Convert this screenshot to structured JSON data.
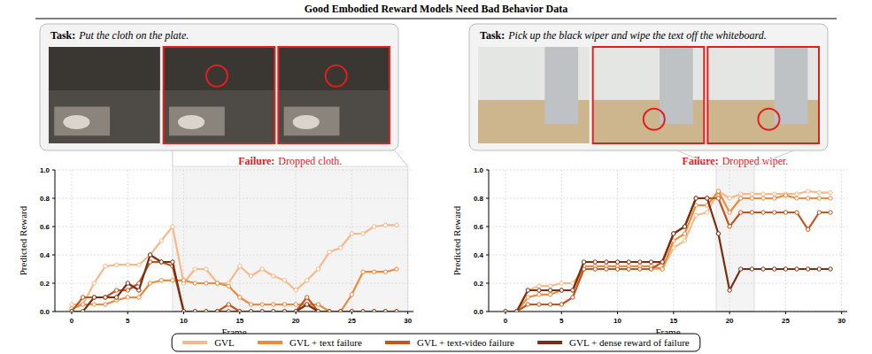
{
  "header": {
    "title": "Good Embodied Reward Models Need Bad Behavior Data"
  },
  "chart_data": [
    {
      "type": "line",
      "title_label": "Task:",
      "title": "Put the cloth on the plate.",
      "annotations": [
        {
          "label": "Failure:",
          "text": "Dropped cloth.",
          "x_range": [
            9,
            30
          ]
        }
      ],
      "x_label": "Frame",
      "y_label": "Predicted Reward",
      "x": [
        0,
        1,
        2,
        3,
        4,
        5,
        6,
        7,
        8,
        9,
        10,
        11,
        12,
        13,
        14,
        15,
        16,
        17,
        18,
        19,
        20,
        21,
        22,
        23,
        24,
        25,
        26,
        27,
        28,
        29
      ],
      "xlim": [
        -1.5,
        30.5
      ],
      "xticks": [
        0,
        5,
        10,
        15,
        20,
        25,
        30
      ],
      "ylim": [
        0,
        1
      ],
      "yticks": [
        {
          "value": 0,
          "label": "0.0"
        },
        {
          "value": 0.2,
          "label": "0.2"
        },
        {
          "value": 0.4,
          "label": "0.4"
        },
        {
          "value": 0.6,
          "label": "0.6"
        },
        {
          "value": 0.8,
          "label": "0.8"
        },
        {
          "value": 1,
          "label": "1.0"
        }
      ],
      "grid": true,
      "legend": "bottom",
      "marker": "circle",
      "series": [
        {
          "name": "GVL",
          "color": "#f6b98a",
          "values": [
            0.05,
            0.05,
            0.2,
            0.32,
            0.33,
            0.33,
            0.33,
            0.4,
            0.5,
            0.6,
            0.2,
            0.3,
            0.3,
            0.2,
            0.2,
            0.32,
            0.25,
            0.3,
            0.25,
            0.22,
            0.15,
            0.22,
            0.3,
            0.42,
            0.45,
            0.55,
            0.55,
            0.6,
            0.61,
            0.61
          ]
        },
        {
          "name": "GVL + text failure",
          "color": "#ee8a3c",
          "values": [
            0.02,
            0.05,
            0.05,
            0.05,
            0.08,
            0.1,
            0.1,
            0.2,
            0.22,
            0.22,
            0.22,
            0.2,
            0.2,
            0.2,
            0.18,
            0.1,
            0.05,
            0.05,
            0.05,
            0.05,
            0.05,
            0.05,
            0.05,
            0.0,
            0.0,
            0.12,
            0.28,
            0.28,
            0.28,
            0.3
          ]
        },
        {
          "name": "GVL + text-video failure",
          "color": "#c4551c",
          "values": [
            0.0,
            0.1,
            0.1,
            0.1,
            0.15,
            0.15,
            0.2,
            0.35,
            0.35,
            0.32,
            0.0,
            0.0,
            0.0,
            0.0,
            0.05,
            0.0,
            0.0,
            0.0,
            0.0,
            0.0,
            0.0,
            0.1,
            0.0,
            0.0,
            0.0,
            0.0,
            0.0,
            0.0,
            0.0,
            0.0
          ]
        },
        {
          "name": "GVL + dense reward of failure",
          "color": "#7a2e12",
          "values": [
            0.0,
            0.0,
            0.1,
            0.1,
            0.1,
            0.2,
            0.15,
            0.4,
            0.35,
            0.35,
            0.0,
            0.0,
            0.0,
            0.0,
            0.0,
            0.0,
            0.0,
            0.0,
            0.0,
            0.0,
            0.0,
            0.05,
            0.0,
            0.0,
            0.0,
            0.0,
            0.0,
            0.0,
            0.0,
            0.0
          ]
        }
      ]
    },
    {
      "type": "line",
      "title_label": "Task:",
      "title": "Pick up the black wiper and wipe the text off the whiteboard.",
      "annotations": [
        {
          "label": "Failure:",
          "text": "Dropped wiper.",
          "x_range": [
            18.8,
            22.2
          ]
        }
      ],
      "x_label": "Frame",
      "y_label": "Predicted Reward",
      "x": [
        0,
        1,
        2,
        3,
        4,
        5,
        6,
        7,
        8,
        9,
        10,
        11,
        12,
        13,
        14,
        15,
        16,
        17,
        18,
        19,
        20,
        21,
        22,
        23,
        24,
        25,
        26,
        27,
        28,
        29
      ],
      "xlim": [
        -1.5,
        30.5
      ],
      "xticks": [
        0,
        5,
        10,
        15,
        20,
        25,
        30
      ],
      "ylim": [
        0,
        1
      ],
      "yticks": [
        {
          "value": 0,
          "label": "0.0"
        },
        {
          "value": 0.2,
          "label": "0.2"
        },
        {
          "value": 0.4,
          "label": "0.4"
        },
        {
          "value": 0.6,
          "label": "0.6"
        },
        {
          "value": 0.8,
          "label": "0.8"
        },
        {
          "value": 1,
          "label": "1.0"
        }
      ],
      "grid": true,
      "marker": "circle",
      "series": [
        {
          "name": "GVL",
          "color": "#f6b98a",
          "values": [
            0.0,
            0.0,
            0.15,
            0.18,
            0.18,
            0.2,
            0.2,
            0.3,
            0.3,
            0.3,
            0.3,
            0.3,
            0.3,
            0.3,
            0.3,
            0.45,
            0.5,
            0.68,
            0.7,
            0.85,
            0.8,
            0.83,
            0.83,
            0.83,
            0.83,
            0.83,
            0.83,
            0.85,
            0.84,
            0.84
          ]
        },
        {
          "name": "GVL + text failure",
          "color": "#ee8a3c",
          "values": [
            0.0,
            0.0,
            0.1,
            0.12,
            0.12,
            0.15,
            0.15,
            0.32,
            0.32,
            0.32,
            0.32,
            0.32,
            0.32,
            0.32,
            0.3,
            0.5,
            0.55,
            0.75,
            0.75,
            0.85,
            0.7,
            0.8,
            0.8,
            0.8,
            0.8,
            0.82,
            0.8,
            0.8,
            0.8,
            0.8
          ]
        },
        {
          "name": "GVL + text-video failure",
          "color": "#c4551c",
          "values": [
            0.0,
            0.0,
            0.05,
            0.05,
            0.05,
            0.05,
            0.1,
            0.3,
            0.3,
            0.3,
            0.3,
            0.3,
            0.3,
            0.3,
            0.35,
            0.55,
            0.6,
            0.8,
            0.8,
            0.8,
            0.6,
            0.7,
            0.7,
            0.7,
            0.7,
            0.7,
            0.7,
            0.58,
            0.7,
            0.7
          ]
        },
        {
          "name": "GVL + dense reward of failure",
          "color": "#7a2e12",
          "values": [
            0.0,
            0.0,
            0.15,
            0.15,
            0.15,
            0.15,
            0.15,
            0.35,
            0.35,
            0.35,
            0.35,
            0.35,
            0.35,
            0.35,
            0.35,
            0.55,
            0.6,
            0.8,
            0.8,
            0.55,
            0.15,
            0.3,
            0.3,
            0.3,
            0.3,
            0.3,
            0.3,
            0.3,
            0.3,
            0.3
          ]
        }
      ]
    }
  ]
}
